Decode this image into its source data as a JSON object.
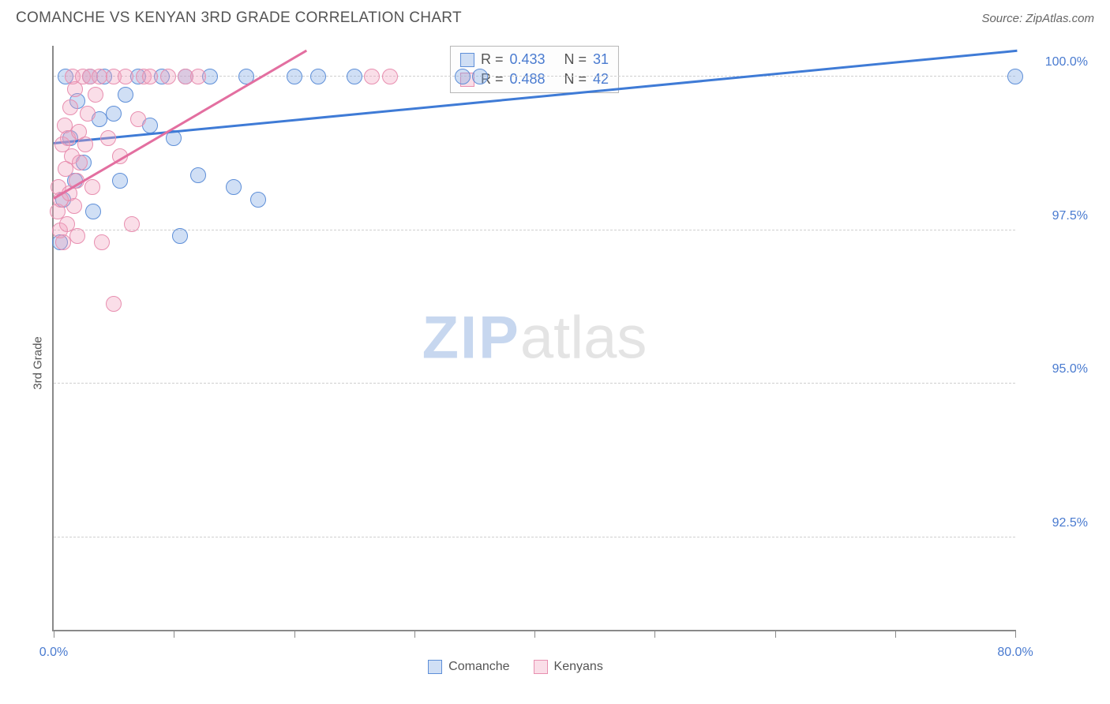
{
  "title": "COMANCHE VS KENYAN 3RD GRADE CORRELATION CHART",
  "source": "Source: ZipAtlas.com",
  "ylabel": "3rd Grade",
  "watermark_a": "ZIP",
  "watermark_b": "atlas",
  "chart": {
    "type": "scatter",
    "xlim": [
      0,
      80
    ],
    "ylim": [
      91,
      100.5
    ],
    "xticks": [
      0,
      10,
      20,
      30,
      40,
      50,
      60,
      70,
      80
    ],
    "xtick_labels_shown": {
      "0": "0.0%",
      "80": "80.0%"
    },
    "yticks": [
      92.5,
      95.0,
      97.5,
      100.0
    ],
    "ytick_labels": [
      "92.5%",
      "95.0%",
      "97.5%",
      "100.0%"
    ],
    "grid_color": "#cfcfcf",
    "axis_color": "#8a8a8a",
    "background_color": "#ffffff",
    "marker_radius": 10,
    "marker_stroke_width": 1.5,
    "series": [
      {
        "name": "Comanche",
        "fill": "rgba(120,163,225,0.35)",
        "stroke": "#5e8fd8",
        "r_value": "0.433",
        "n_value": "31",
        "trend": {
          "x1": 0,
          "y1": 98.9,
          "x2": 80,
          "y2": 100.4,
          "color": "#3f7bd6"
        },
        "points": [
          [
            0.5,
            97.3
          ],
          [
            0.8,
            98.0
          ],
          [
            1.0,
            100.0
          ],
          [
            1.4,
            99.0
          ],
          [
            1.8,
            98.3
          ],
          [
            2.0,
            99.6
          ],
          [
            2.5,
            98.6
          ],
          [
            3.0,
            100.0
          ],
          [
            3.3,
            97.8
          ],
          [
            3.8,
            99.3
          ],
          [
            4.2,
            100.0
          ],
          [
            5.0,
            99.4
          ],
          [
            5.5,
            98.3
          ],
          [
            6.0,
            99.7
          ],
          [
            7.0,
            100.0
          ],
          [
            8.0,
            99.2
          ],
          [
            9.0,
            100.0
          ],
          [
            10.0,
            99.0
          ],
          [
            10.5,
            97.4
          ],
          [
            11.0,
            100.0
          ],
          [
            12.0,
            98.4
          ],
          [
            13.0,
            100.0
          ],
          [
            15.0,
            98.2
          ],
          [
            16.0,
            100.0
          ],
          [
            17.0,
            98.0
          ],
          [
            20.0,
            100.0
          ],
          [
            22.0,
            100.0
          ],
          [
            25.0,
            100.0
          ],
          [
            34.0,
            100.0
          ],
          [
            35.5,
            100.0
          ],
          [
            80.0,
            100.0
          ]
        ]
      },
      {
        "name": "Kenyans",
        "fill": "rgba(240,160,190,0.35)",
        "stroke": "#e88fb0",
        "r_value": "0.488",
        "n_value": "42",
        "trend": {
          "x1": 0,
          "y1": 98.0,
          "x2": 21,
          "y2": 100.4,
          "color": "#e36fa0"
        },
        "points": [
          [
            0.3,
            97.8
          ],
          [
            0.4,
            98.2
          ],
          [
            0.5,
            97.5
          ],
          [
            0.6,
            98.0
          ],
          [
            0.7,
            98.9
          ],
          [
            0.8,
            97.3
          ],
          [
            0.9,
            99.2
          ],
          [
            1.0,
            98.5
          ],
          [
            1.1,
            97.6
          ],
          [
            1.2,
            99.0
          ],
          [
            1.3,
            98.1
          ],
          [
            1.4,
            99.5
          ],
          [
            1.5,
            98.7
          ],
          [
            1.6,
            100.0
          ],
          [
            1.7,
            97.9
          ],
          [
            1.8,
            99.8
          ],
          [
            1.9,
            98.3
          ],
          [
            2.0,
            97.4
          ],
          [
            2.1,
            99.1
          ],
          [
            2.2,
            98.6
          ],
          [
            2.4,
            100.0
          ],
          [
            2.6,
            98.9
          ],
          [
            2.8,
            99.4
          ],
          [
            3.0,
            100.0
          ],
          [
            3.2,
            98.2
          ],
          [
            3.5,
            99.7
          ],
          [
            3.8,
            100.0
          ],
          [
            4.0,
            97.3
          ],
          [
            4.5,
            99.0
          ],
          [
            5.0,
            100.0
          ],
          [
            5.0,
            96.3
          ],
          [
            5.5,
            98.7
          ],
          [
            6.0,
            100.0
          ],
          [
            6.5,
            97.6
          ],
          [
            7.0,
            99.3
          ],
          [
            7.5,
            100.0
          ],
          [
            8.0,
            100.0
          ],
          [
            9.5,
            100.0
          ],
          [
            11.0,
            100.0
          ],
          [
            12.0,
            100.0
          ],
          [
            26.5,
            100.0
          ],
          [
            28.0,
            100.0
          ]
        ]
      }
    ]
  },
  "stats_box": {
    "r_label": "R =",
    "n_label": "N ="
  },
  "legend": {
    "items": [
      "Comanche",
      "Kenyans"
    ]
  }
}
